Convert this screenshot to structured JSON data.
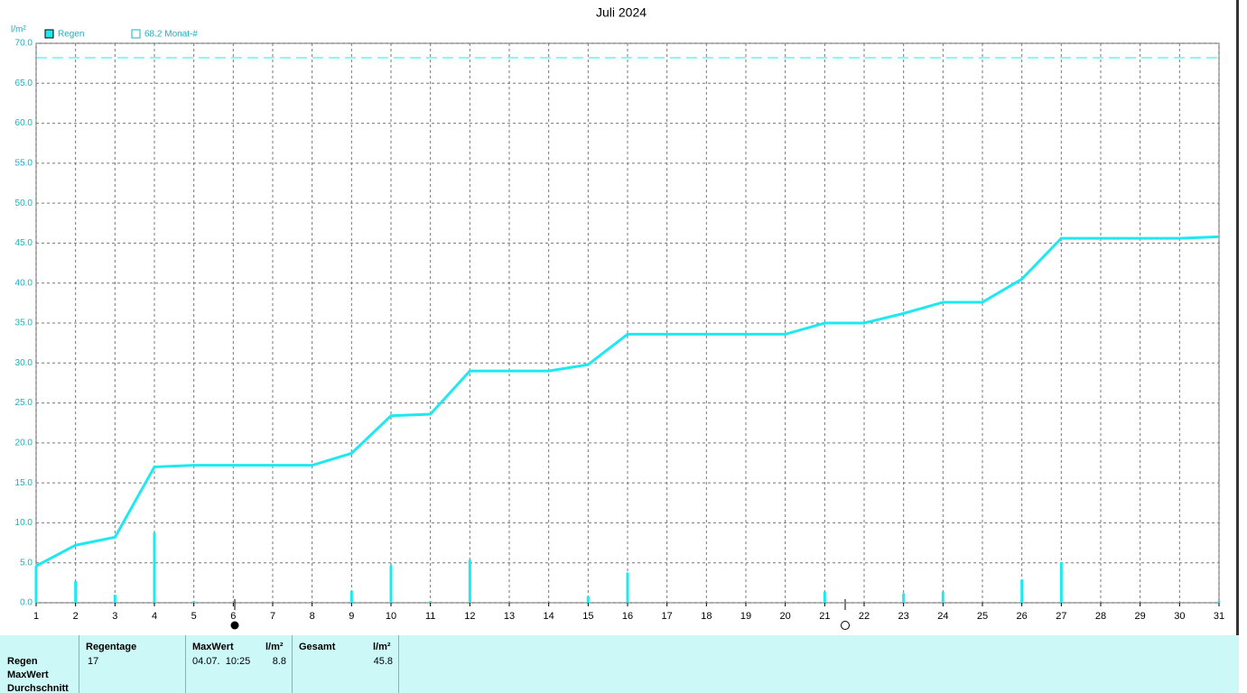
{
  "chart_data": {
    "type": "combo",
    "title": "Juli 2024",
    "y_label": "l/m²",
    "x": [
      1,
      2,
      3,
      4,
      5,
      6,
      7,
      8,
      9,
      10,
      11,
      12,
      13,
      14,
      15,
      16,
      17,
      18,
      19,
      20,
      21,
      22,
      23,
      24,
      25,
      26,
      27,
      28,
      29,
      30,
      31
    ],
    "xlim": [
      1,
      31
    ],
    "xticks": [
      1,
      2,
      3,
      4,
      5,
      6,
      7,
      8,
      9,
      10,
      11,
      12,
      13,
      14,
      15,
      16,
      17,
      18,
      19,
      20,
      21,
      22,
      23,
      24,
      25,
      26,
      27,
      28,
      29,
      30,
      31
    ],
    "ylim": [
      0,
      70
    ],
    "yticks": [
      {
        "value": 0,
        "label": "0.0"
      },
      {
        "value": 5,
        "label": "5.0"
      },
      {
        "value": 10,
        "label": "10.0"
      },
      {
        "value": 15,
        "label": "15.0"
      },
      {
        "value": 20,
        "label": "20.0"
      },
      {
        "value": 25,
        "label": "25.0"
      },
      {
        "value": 30,
        "label": "30.0"
      },
      {
        "value": 35,
        "label": "35.0"
      },
      {
        "value": 40,
        "label": "40.0"
      },
      {
        "value": 45,
        "label": "45.0"
      },
      {
        "value": 50,
        "label": "50.0"
      },
      {
        "value": 55,
        "label": "55.0"
      },
      {
        "value": 60,
        "label": "60.0"
      },
      {
        "value": 65,
        "label": "65.0"
      },
      {
        "value": 70,
        "label": "70.0"
      }
    ],
    "grid": true,
    "series": [
      {
        "name": "Regen",
        "type": "bar",
        "color": "#1ee8f0",
        "values": [
          4.6,
          2.7,
          1.0,
          8.8,
          0.2,
          0,
          0,
          0,
          1.5,
          4.7,
          0.2,
          5.4,
          0,
          0,
          0.8,
          3.8,
          0,
          0,
          0,
          0,
          1.4,
          0,
          1.2,
          1.4,
          0,
          2.9,
          5.1,
          0,
          0,
          0,
          0.2
        ]
      },
      {
        "type": "line",
        "color": "#1ee8f0",
        "values": [
          4.6,
          7.2,
          8.2,
          17.0,
          17.2,
          17.2,
          17.2,
          17.2,
          18.7,
          23.4,
          23.6,
          29.0,
          29.0,
          29.0,
          29.8,
          33.6,
          33.6,
          33.6,
          33.6,
          33.6,
          35.0,
          35.0,
          36.2,
          37.6,
          37.6,
          40.5,
          45.6,
          45.6,
          45.6,
          45.6,
          45.8
        ]
      }
    ],
    "reference_line": {
      "value": 68.2,
      "label": "68.2 Monat-#",
      "color": "#1ee8f0"
    }
  },
  "table": {
    "headers": [
      "Regentage",
      "MaxWert",
      "l/m²",
      "Gesamt",
      "l/m²"
    ],
    "row_labels": [
      "Regen",
      "MaxWert",
      "Durchschnitt"
    ],
    "regen": {
      "regentage": 17,
      "maxwert_date": "04.07.  10:25",
      "maxwert": 8.8,
      "gesamt": 45.8
    }
  }
}
